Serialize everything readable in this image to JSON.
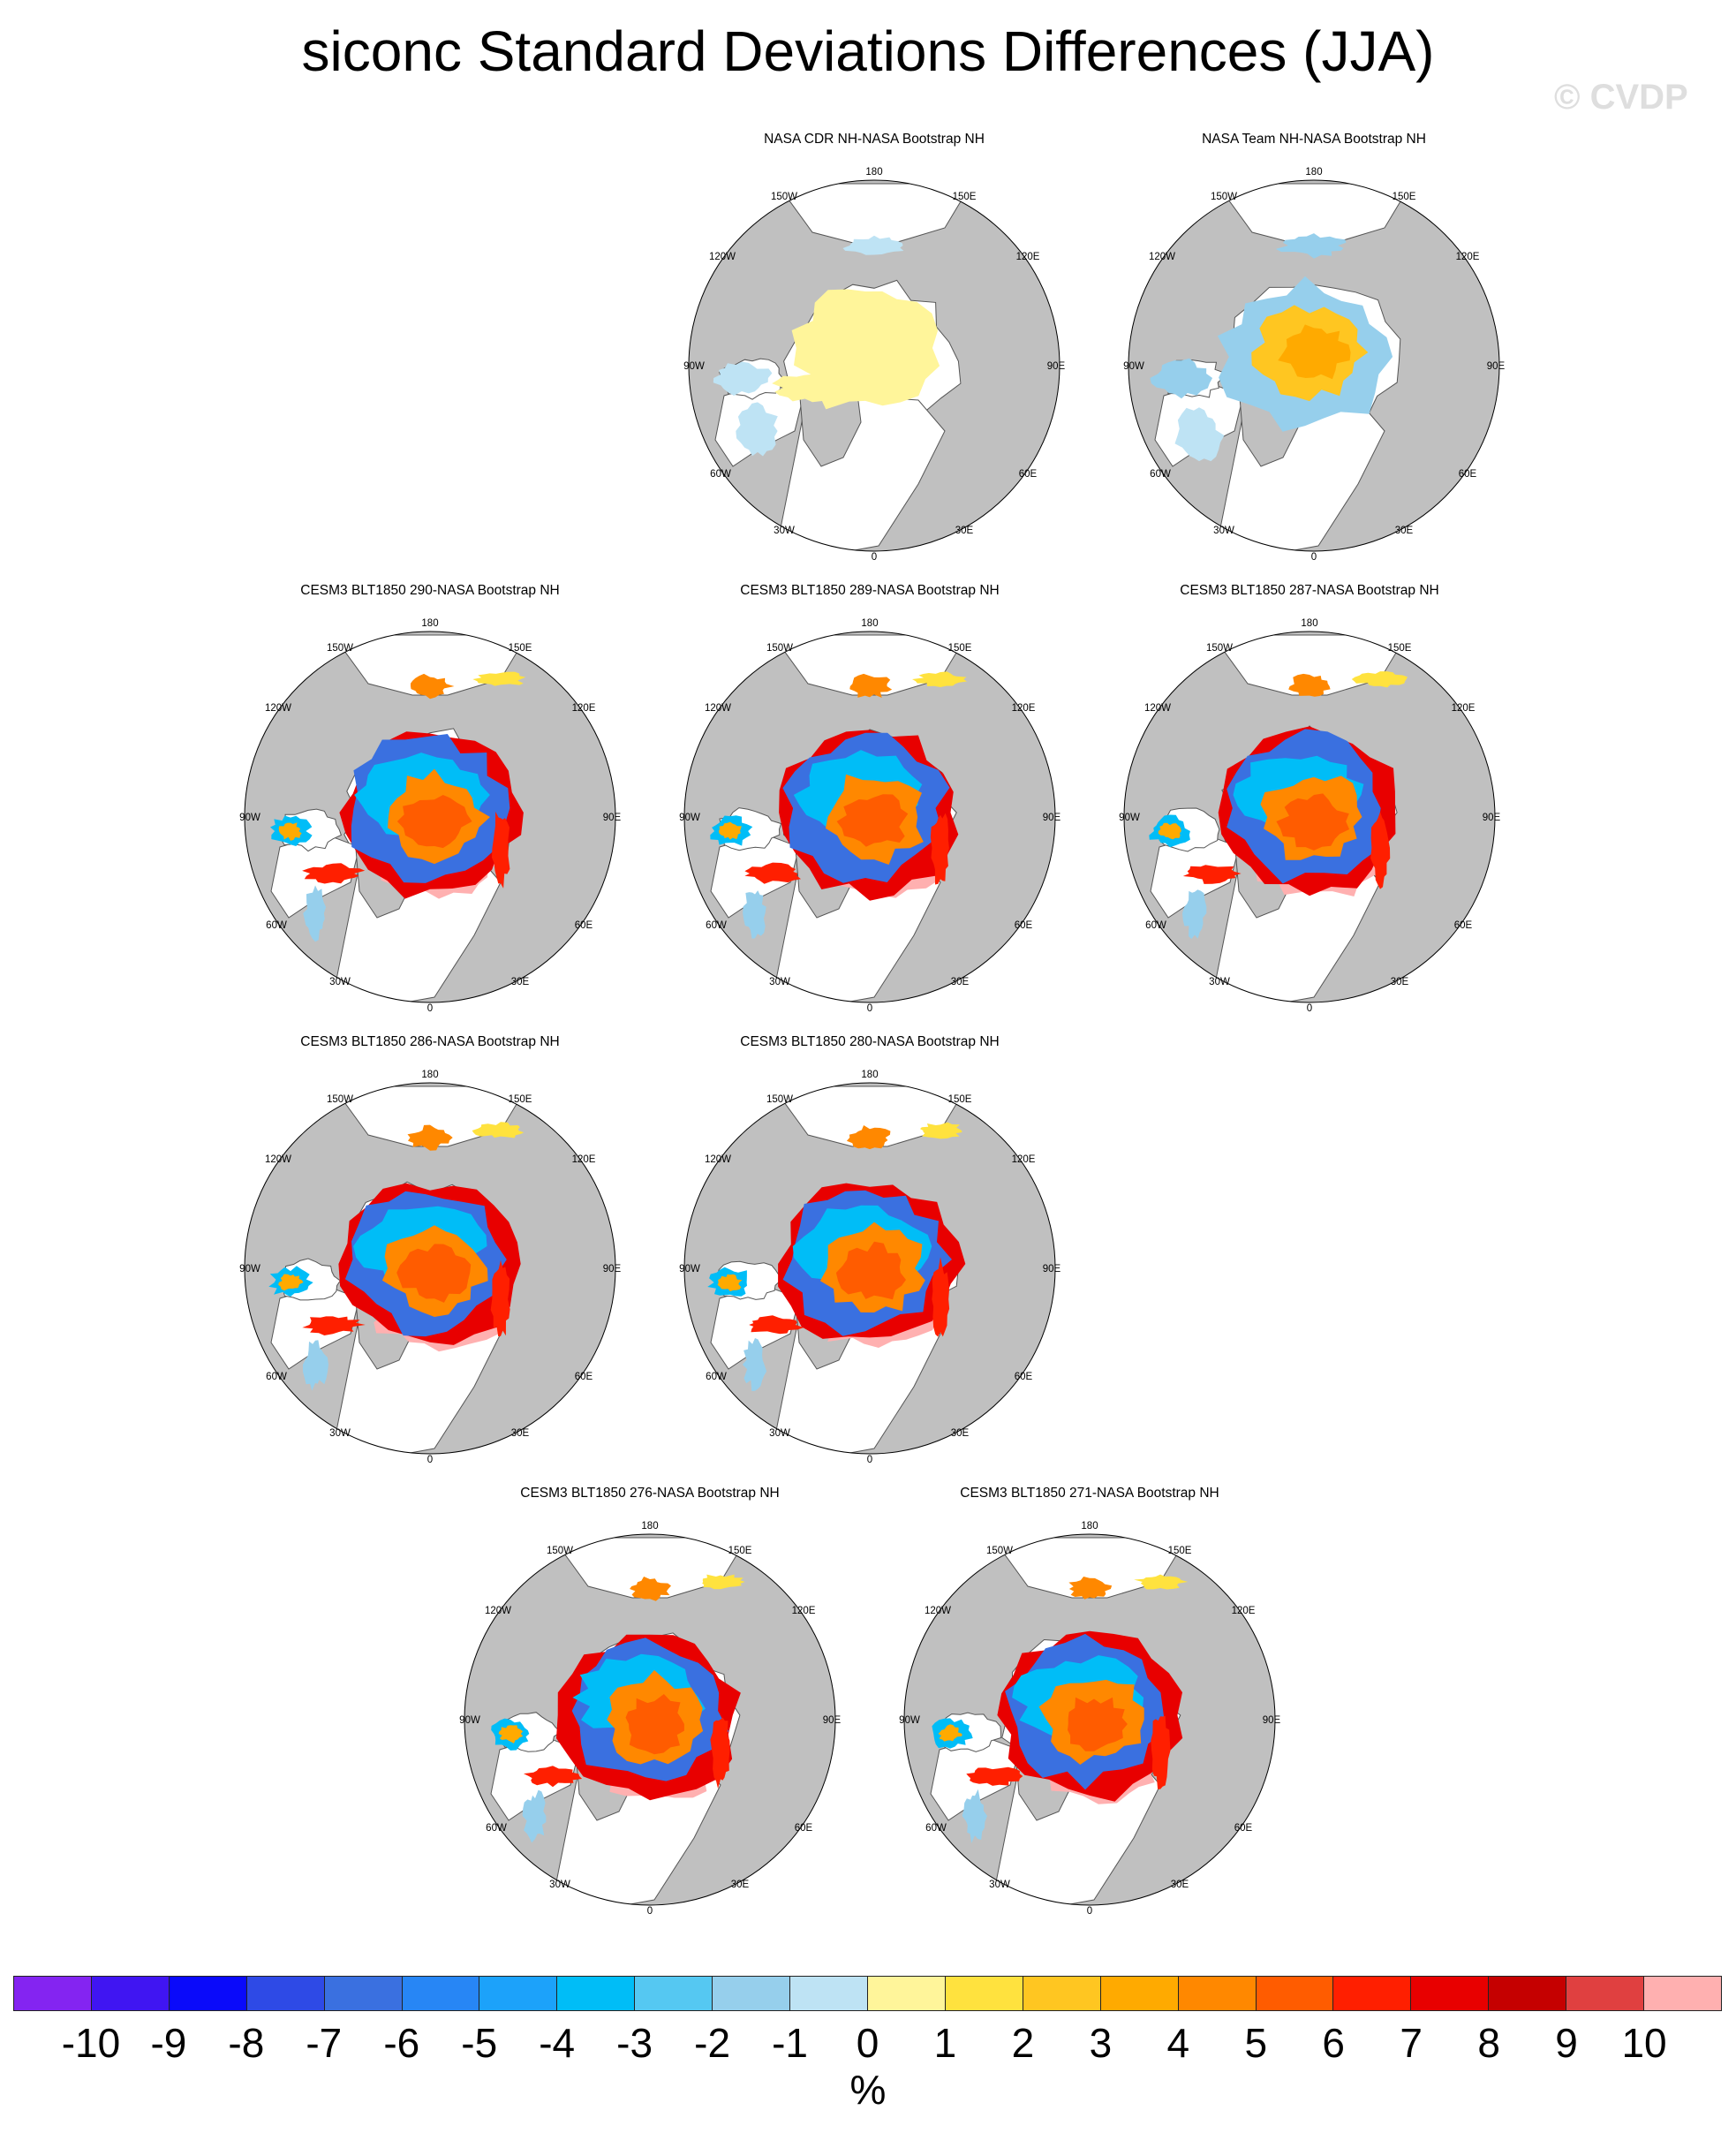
{
  "title": "siconc Standard Deviations Differences (JJA)",
  "watermark": "© CVDP",
  "map_labels": {
    "lon_180": "180",
    "lon_150W": "150W",
    "lon_150E": "150E",
    "lon_120W": "120W",
    "lon_120E": "120E",
    "lon_90W": "90W",
    "lon_90E": "90E",
    "lon_60W": "60W",
    "lon_60E": "60E",
    "lon_30W": "30W",
    "lon_30E": "30E",
    "lon_0": "0"
  },
  "panels": [
    {
      "title": "NASA CDR NH-NASA Bootstrap NH",
      "pattern": "cdr"
    },
    {
      "title": "NASA Team NH-NASA Bootstrap NH",
      "pattern": "team"
    },
    {
      "title": "CESM3 BLT1850 290-NASA Bootstrap NH",
      "pattern": "model"
    },
    {
      "title": "CESM3 BLT1850 289-NASA Bootstrap NH",
      "pattern": "model"
    },
    {
      "title": "CESM3 BLT1850 287-NASA Bootstrap NH",
      "pattern": "model"
    },
    {
      "title": "CESM3 BLT1850 286-NASA Bootstrap NH",
      "pattern": "model"
    },
    {
      "title": "CESM3 BLT1850 280-NASA Bootstrap NH",
      "pattern": "model"
    },
    {
      "title": "CESM3 BLT1850 276-NASA Bootstrap NH",
      "pattern": "model"
    },
    {
      "title": "CESM3 BLT1850 271-NASA Bootstrap NH",
      "pattern": "model"
    }
  ],
  "colorbar": {
    "unit": "%",
    "tick_labels": [
      "-10",
      "-9",
      "-8",
      "-7",
      "-6",
      "-5",
      "-4",
      "-3",
      "-2",
      "-1",
      "0",
      "1",
      "2",
      "3",
      "4",
      "5",
      "6",
      "7",
      "8",
      "9",
      "10"
    ],
    "colors": [
      "#8424f1",
      "#4015f2",
      "#0a0afa",
      "#2e4ae6",
      "#3a70e0",
      "#2786f5",
      "#1ca2fa",
      "#00bdf7",
      "#55c8f2",
      "#96cfec",
      "#bee3f4",
      "#fff59a",
      "#ffe23e",
      "#ffc621",
      "#ffaa00",
      "#ff8800",
      "#ff5c00",
      "#ff1f00",
      "#e80000",
      "#c50000",
      "#e04040",
      "#ffb0b0"
    ]
  },
  "colors": {
    "land": "#c0c0c0",
    "ocean": "#ffffff",
    "coast": "#555555"
  }
}
